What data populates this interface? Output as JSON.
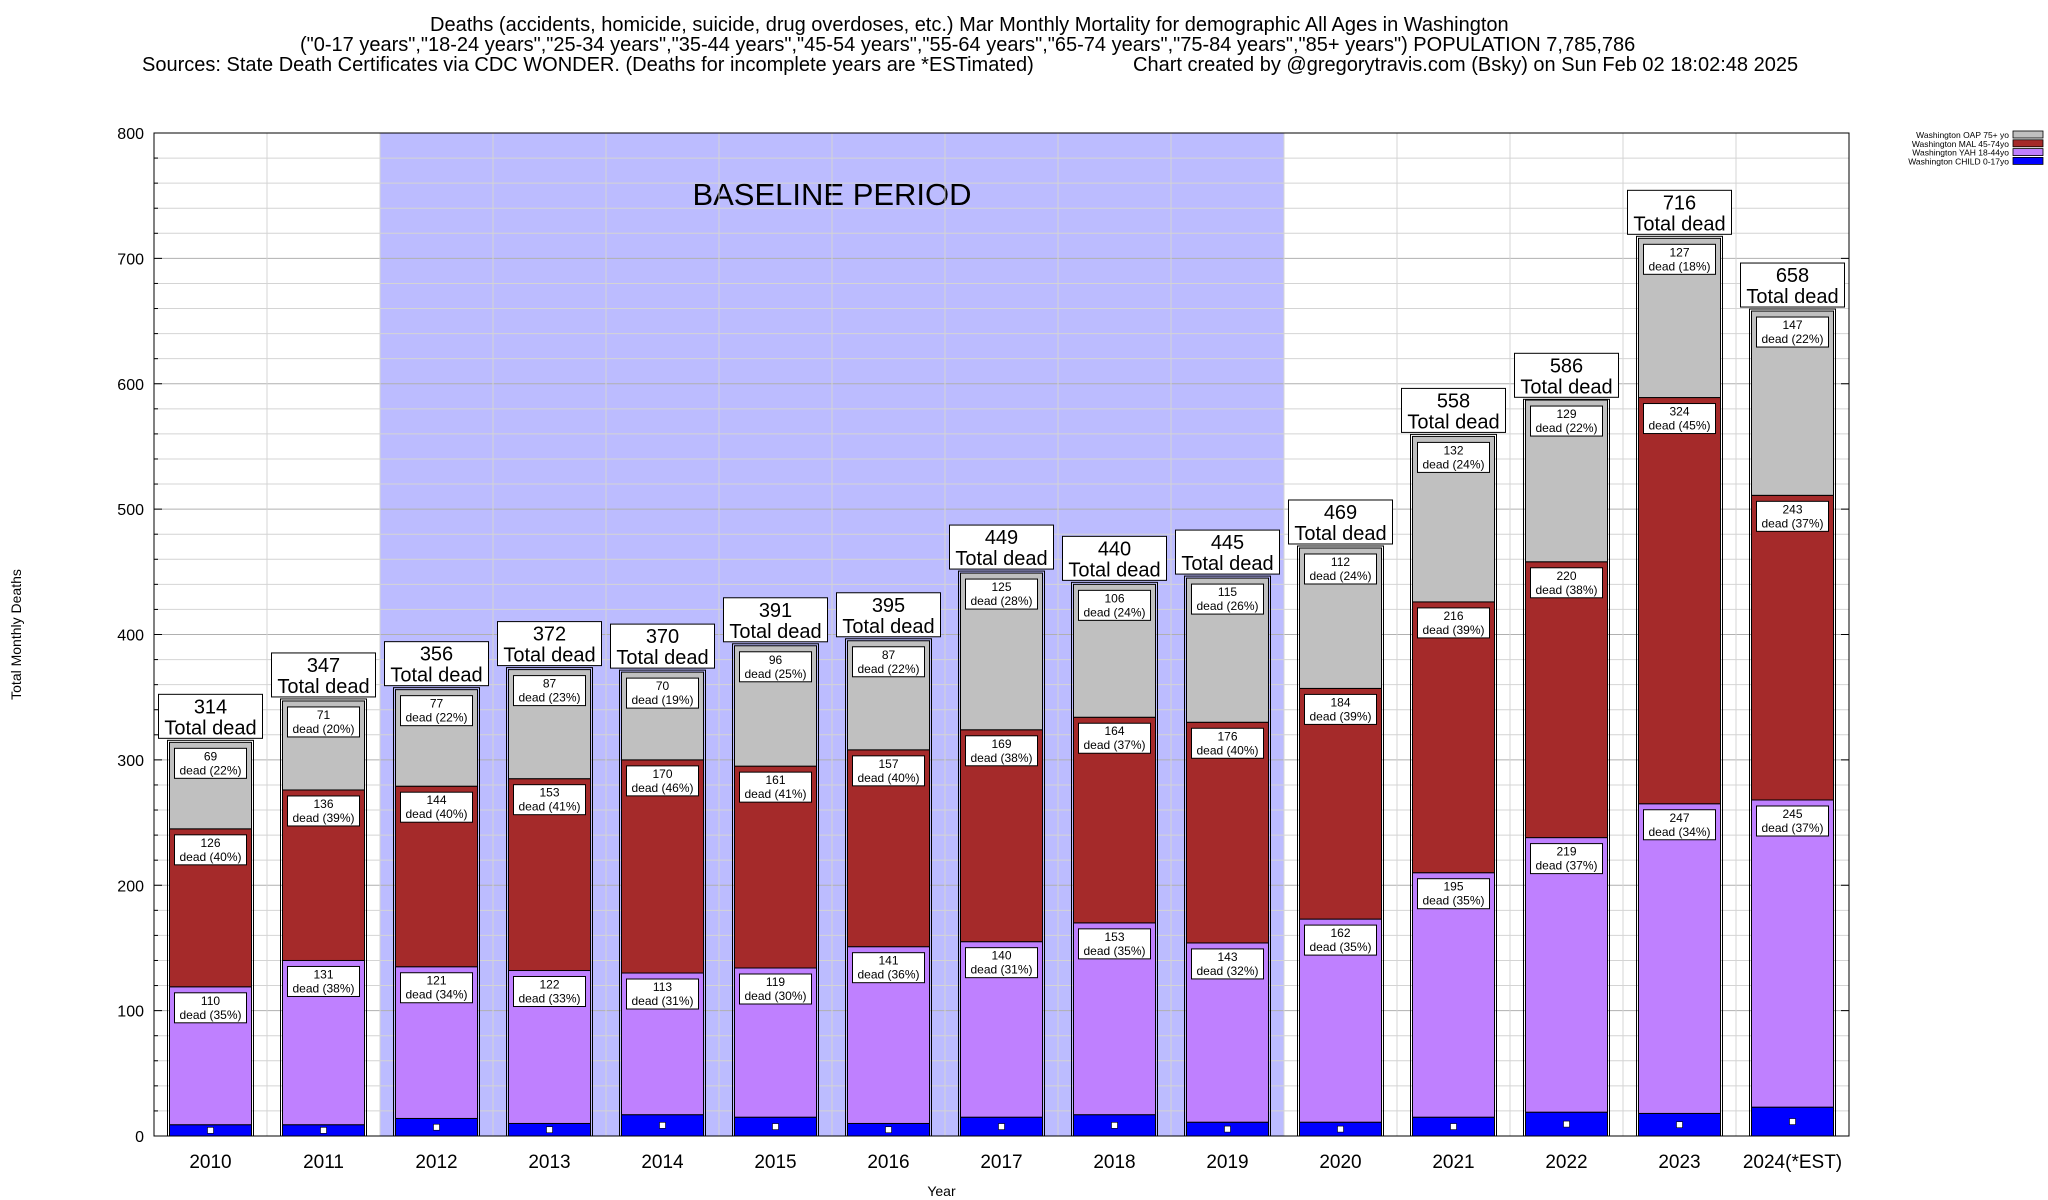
{
  "title": {
    "line1": "Deaths (accidents, homicide, suicide, drug overdoses, etc.) Mar Monthly Mortality for demographic All Ages in Washington",
    "line2": "(\"0-17 years\",\"18-24 years\",\"25-34 years\",\"35-44 years\",\"45-54 years\",\"55-64 years\",\"65-74 years\",\"75-84 years\",\"85+ years\") POPULATION 7,785,786",
    "line3_left": "Sources: State Death Certificates via CDC WONDER. (Deaths for incomplete years are *ESTimated)",
    "line3_right": "Chart created by @gregorytravis.com (Bsky) on Sun Feb 02 18:02:48 2025"
  },
  "baseline_label": "BASELINE PERIOD",
  "colors": {
    "oap": "#c0c0c0",
    "mal": "#a52a2a",
    "yah": "#bf80ff",
    "child": "#0000ff",
    "baseline": "#bcbcff"
  },
  "chart_data": {
    "type": "bar",
    "stacked": true,
    "xlabel": "Year",
    "ylabel": "Total Monthly Deaths",
    "ylim": [
      0,
      800
    ],
    "yticks": [
      0,
      100,
      200,
      300,
      400,
      500,
      600,
      700,
      800
    ],
    "grid": true,
    "legend_position": "top-right",
    "baseline_period": [
      "2012",
      "2019"
    ],
    "categories": [
      "2010",
      "2011",
      "2012",
      "2013",
      "2014",
      "2015",
      "2016",
      "2017",
      "2018",
      "2019",
      "2020",
      "2021",
      "2022",
      "2023",
      "2024(*EST)"
    ],
    "totals": [
      314,
      347,
      356,
      372,
      370,
      391,
      395,
      449,
      440,
      445,
      469,
      558,
      586,
      716,
      658
    ],
    "total_suffix": "Total dead",
    "dead_word": "dead",
    "series": [
      {
        "name": "Washington CHILD 0-17yo",
        "key": "child",
        "values": [
          9,
          9,
          14,
          10,
          17,
          15,
          10,
          15,
          17,
          11,
          11,
          15,
          19,
          18,
          23
        ]
      },
      {
        "name": "Washington YAH 18-44yo",
        "key": "yah",
        "values": [
          110,
          131,
          121,
          122,
          113,
          119,
          141,
          140,
          153,
          143,
          162,
          195,
          219,
          247,
          245
        ],
        "pct": [
          "35%",
          "38%",
          "34%",
          "33%",
          "31%",
          "30%",
          "36%",
          "31%",
          "35%",
          "32%",
          "35%",
          "35%",
          "37%",
          "34%",
          "37%"
        ]
      },
      {
        "name": "Washington MAL 45-74yo",
        "key": "mal",
        "values": [
          126,
          136,
          144,
          153,
          170,
          161,
          157,
          169,
          164,
          176,
          184,
          216,
          220,
          324,
          243
        ],
        "pct": [
          "40%",
          "39%",
          "40%",
          "41%",
          "46%",
          "41%",
          "40%",
          "38%",
          "37%",
          "40%",
          "39%",
          "39%",
          "38%",
          "45%",
          "37%"
        ]
      },
      {
        "name": "Washington OAP 75+ yo",
        "key": "oap",
        "values": [
          69,
          71,
          77,
          87,
          70,
          96,
          87,
          125,
          106,
          115,
          112,
          132,
          129,
          127,
          147
        ],
        "pct": [
          "22%",
          "20%",
          "22%",
          "23%",
          "19%",
          "25%",
          "22%",
          "28%",
          "24%",
          "26%",
          "24%",
          "24%",
          "22%",
          "18%",
          "22%"
        ]
      }
    ]
  }
}
